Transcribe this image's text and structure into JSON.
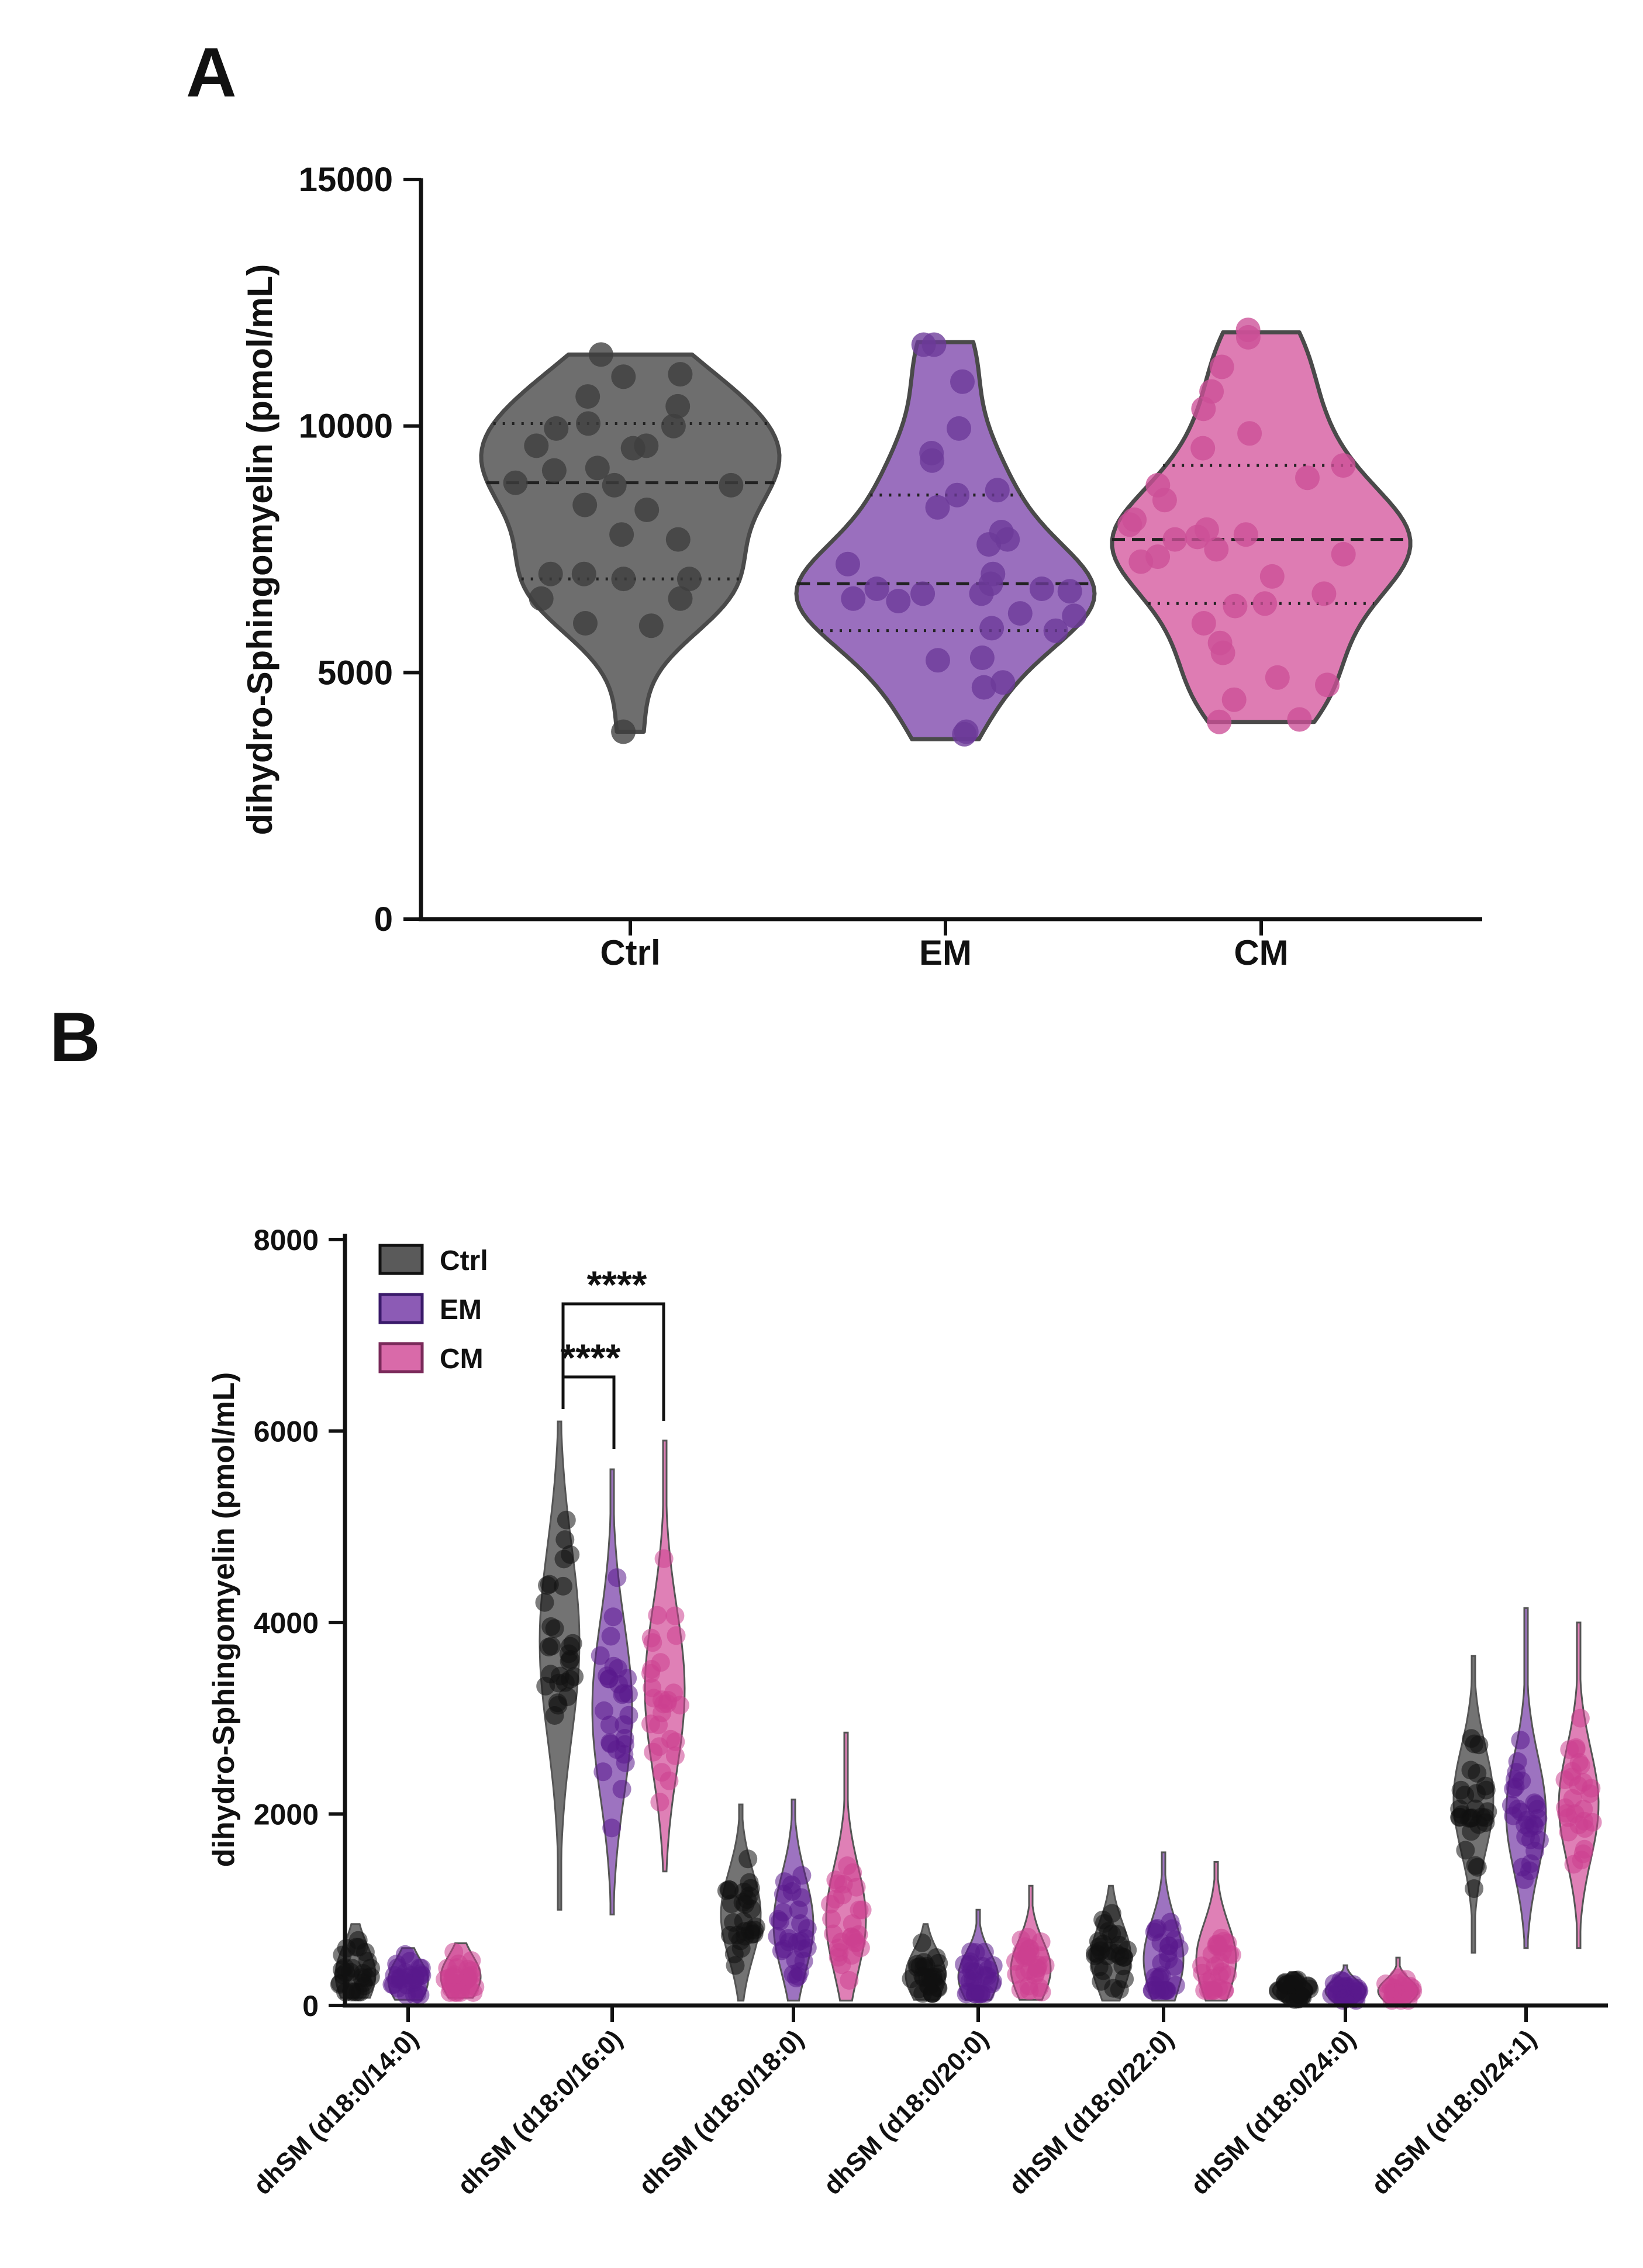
{
  "chart_data": [
    {
      "panel": "A",
      "type": "violin",
      "title": "",
      "xlabel": "",
      "ylabel": "dihydro-Sphingomyelin (pmol/mL)",
      "ylim": [
        0,
        15000
      ],
      "yticks": [
        0,
        5000,
        10000,
        15000
      ],
      "ytick_labels": [
        "0",
        "5000",
        "10000",
        "15000"
      ],
      "categories": [
        "Ctrl",
        "EM",
        "CM"
      ],
      "colors": [
        "#5a5a5a",
        "#8c5bb5",
        "#d96aa9"
      ],
      "point_colors": [
        "#3e3e3e",
        "#6b3a98",
        "#cc4f97"
      ],
      "series": [
        {
          "name": "Ctrl",
          "min": 3800,
          "q1": 6900,
          "median": 8850,
          "q3": 10050,
          "max": 11450,
          "points": [
            11450,
            11050,
            11000,
            10600,
            10400,
            10050,
            10000,
            9950,
            9600,
            9600,
            9550,
            9150,
            9100,
            8850,
            8800,
            8800,
            8400,
            8300,
            7800,
            7700,
            7000,
            7000,
            6900,
            6900,
            6500,
            6500,
            6000,
            5950,
            3800
          ]
        },
        {
          "name": "EM",
          "min": 3650,
          "q1": 5850,
          "median": 6800,
          "q3": 8600,
          "max": 11700,
          "points": [
            11650,
            11650,
            10900,
            9950,
            9450,
            9300,
            8700,
            8600,
            8350,
            7850,
            7700,
            7600,
            7200,
            7000,
            6800,
            6700,
            6700,
            6650,
            6600,
            6600,
            6500,
            6450,
            6200,
            6150,
            5900,
            5850,
            5300,
            5250,
            4800,
            4700,
            3800,
            3750
          ]
        },
        {
          "name": "CM",
          "min": 4000,
          "q1": 6400,
          "median": 7700,
          "q3": 9200,
          "max": 11900,
          "points": [
            11950,
            11800,
            11200,
            10700,
            10350,
            9850,
            9550,
            9200,
            8950,
            8800,
            8500,
            8100,
            8000,
            7900,
            7800,
            7750,
            7700,
            7500,
            7400,
            7350,
            7250,
            6950,
            6600,
            6400,
            6350,
            6000,
            5600,
            5400,
            4900,
            4750,
            4450,
            4050,
            4000
          ]
        }
      ]
    },
    {
      "panel": "B",
      "type": "violin",
      "title": "",
      "xlabel": "",
      "ylabel": "dihydro-Sphingomyelin (pmol/mL)",
      "ylim": [
        0,
        8000
      ],
      "yticks": [
        0,
        2000,
        4000,
        6000,
        8000
      ],
      "ytick_labels": [
        "0",
        "2000",
        "4000",
        "6000",
        "8000"
      ],
      "legend_position": "top-left",
      "categories": [
        "dhSM (d18:0/14:0)",
        "dhSM (d18:0/16:0)",
        "dhSM (d18:0/18:0)",
        "dhSM (d18:0/20:0)",
        "dhSM (d18:0/22:0)",
        "dhSM (d18:0/24:0)",
        "dhSM (d18:0/24:1)"
      ],
      "colors": [
        "#5a5a5a",
        "#8c5bb5",
        "#d96aa9"
      ],
      "point_colors": [
        "#111111",
        "#5a1a8c",
        "#cc3f8f"
      ],
      "series": [
        {
          "name": "Ctrl",
          "min": [
            80,
            1000,
            50,
            60,
            50,
            30,
            550
          ],
          "median": [
            320,
            3800,
            950,
            320,
            500,
            160,
            2150
          ],
          "max": [
            850,
            6100,
            2100,
            850,
            1250,
            350,
            3650
          ],
          "spread": [
            300,
            1000,
            450,
            250,
            350,
            100,
            550
          ]
        },
        {
          "name": "EM",
          "min": [
            60,
            950,
            50,
            60,
            50,
            20,
            600
          ],
          "median": [
            260,
            3100,
            850,
            300,
            480,
            150,
            2000
          ],
          "max": [
            600,
            5600,
            2150,
            1000,
            1600,
            420,
            4150
          ],
          "spread": [
            220,
            900,
            500,
            250,
            400,
            110,
            600
          ]
        },
        {
          "name": "CM",
          "min": [
            80,
            1400,
            50,
            60,
            50,
            20,
            600
          ],
          "median": [
            300,
            3300,
            900,
            380,
            480,
            150,
            2100
          ],
          "max": [
            650,
            5900,
            2850,
            1250,
            1500,
            500,
            4000
          ],
          "spread": [
            220,
            850,
            550,
            300,
            380,
            120,
            580
          ]
        }
      ],
      "annotations": [
        {
          "text": "****",
          "from": "Ctrl",
          "to": "EM",
          "category": "dhSM (d18:0/16:0)"
        },
        {
          "text": "****",
          "from": "Ctrl",
          "to": "CM",
          "category": "dhSM (d18:0/16:0)"
        }
      ]
    }
  ],
  "panel_labels": [
    "A",
    "B"
  ],
  "legend": [
    "Ctrl",
    "EM",
    "CM"
  ]
}
